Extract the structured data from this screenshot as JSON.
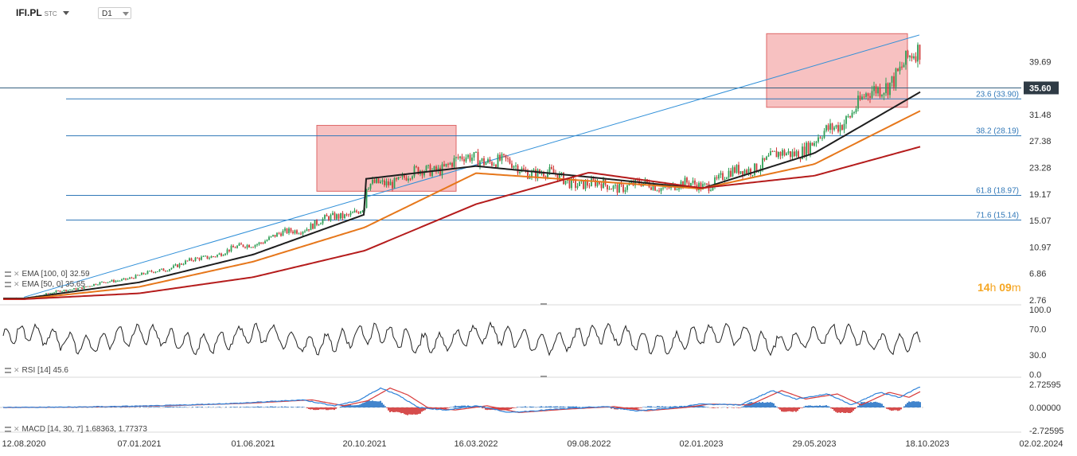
{
  "header": {
    "symbol": "IFI.PL",
    "market": "STC",
    "timeframe": "D1"
  },
  "timer": {
    "hours": "14",
    "h": "h",
    "minutes": "09",
    "m": "m"
  },
  "indicators": {
    "ema100": "EMA [100, 0] 32.59",
    "ema50": "EMA [50, 0] 35.65",
    "rsi": "RSI [14] 45.6",
    "macd": "MACD [14, 30, 7] 1.68363, 1.77373"
  },
  "colors": {
    "candle_up": "#2e9e55",
    "candle_down": "#d23a3a",
    "ema_fast": "#1e1e1e",
    "ema_mid": "#e6771b",
    "ema_slow": "#b51c1c",
    "fib_line": "#3178b8",
    "trend_line": "#2f8fd8",
    "zone_fill": "#f2a0a0",
    "price_tag": "#2f3b45",
    "macd_line": "#2e82d9",
    "macd_signal": "#d83a3a"
  },
  "chart_data": {
    "type": "candlestick",
    "x_ticks": [
      "12.08.2020",
      "07.01.2021",
      "01.06.2021",
      "20.10.2021",
      "16.03.2022",
      "09.08.2022",
      "02.01.2023",
      "29.05.2023",
      "18.10.2023",
      "02.02.2024"
    ],
    "price_axis_ticks": [
      "39.69",
      "31.48",
      "27.38",
      "23.28",
      "19.17",
      "15.07",
      "10.97",
      "6.86",
      "2.76"
    ],
    "current_price": "35.60",
    "fib_levels": [
      {
        "label": "23.6 (33.90)",
        "value": 33.9
      },
      {
        "label": "38.2 (28.19)",
        "value": 28.19
      },
      {
        "label": "61.8 (18.97)",
        "value": 18.97
      },
      {
        "label": "71.6 (15.14)",
        "value": 15.14
      }
    ],
    "horizontal_line": 35.6,
    "trend_line": {
      "from": [
        "12.08.2020",
        3.2
      ],
      "to": [
        "18.10.2023",
        43.8
      ]
    },
    "zones": [
      {
        "from": "20.10.2021",
        "to": "16.03.2022",
        "low": 19.6,
        "high": 29.8
      },
      {
        "from": "29.05.2023",
        "to": "18.10.2023",
        "low": 32.6,
        "high": 44.0
      }
    ],
    "price_path": [
      [
        "12.08.2020",
        3.0
      ],
      [
        "07.01.2021",
        6.5
      ],
      [
        "01.06.2021",
        11.5
      ],
      [
        "20.10.2021",
        17.0
      ],
      [
        "20.10.2021",
        20.0
      ],
      [
        "16.03.2022",
        25.0
      ],
      [
        "09.08.2022",
        20.5
      ],
      [
        "02.01.2023",
        20.5
      ],
      [
        "29.05.2023",
        27.0
      ],
      [
        "18.10.2023",
        42.0
      ]
    ],
    "ema_series": [
      {
        "name": "EMA [50, 0]",
        "values": [
          [
            "12.08.2020",
            3.0
          ],
          [
            "07.01.2021",
            5.5
          ],
          [
            "01.06.2021",
            9.8
          ],
          [
            "20.10.2021",
            16.0
          ],
          [
            "20.10.2021",
            21.5
          ],
          [
            "16.03.2022",
            23.5
          ],
          [
            "09.08.2022",
            21.8
          ],
          [
            "02.01.2023",
            20.0
          ],
          [
            "29.05.2023",
            25.5
          ],
          [
            "18.10.2023",
            35.6
          ]
        ]
      },
      {
        "name": "EMA [100, 0]",
        "values": [
          [
            "12.08.2020",
            2.9
          ],
          [
            "07.01.2021",
            4.8
          ],
          [
            "01.06.2021",
            8.7
          ],
          [
            "20.10.2021",
            14.0
          ],
          [
            "16.03.2022",
            22.4
          ],
          [
            "09.08.2022",
            21.2
          ],
          [
            "02.01.2023",
            20.0
          ],
          [
            "29.05.2023",
            23.8
          ],
          [
            "18.10.2023",
            32.6
          ]
        ]
      },
      {
        "values": [
          [
            "12.08.2020",
            2.9
          ],
          [
            "07.01.2021",
            3.8
          ],
          [
            "01.06.2021",
            6.3
          ],
          [
            "20.10.2021",
            10.4
          ],
          [
            "16.03.2022",
            17.6
          ],
          [
            "09.08.2022",
            22.5
          ],
          [
            "02.01.2023",
            20.1
          ],
          [
            "29.05.2023",
            22.0
          ],
          [
            "18.10.2023",
            26.8
          ]
        ]
      }
    ],
    "rsi": {
      "axis_ticks": [
        "100.0",
        "70.0",
        "30.0",
        "0.0"
      ],
      "last": 45.6
    },
    "macd": {
      "axis_ticks": [
        "2.72595",
        "0.00000",
        "-2.72595"
      ],
      "macd": 1.68363,
      "signal": 1.77373
    }
  }
}
